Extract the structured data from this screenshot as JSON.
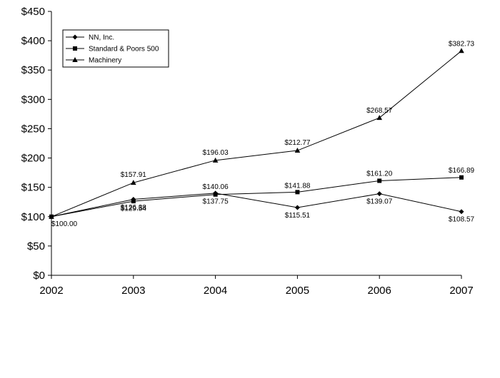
{
  "chart_data": {
    "type": "line",
    "title": "",
    "xlabel": "",
    "ylabel": "",
    "categories": [
      "2002",
      "2003",
      "2004",
      "2005",
      "2006",
      "2007"
    ],
    "y_tick_labels": [
      "$0",
      "$50",
      "$100",
      "$150",
      "$200",
      "$250",
      "$300",
      "$350",
      "$400",
      "$450"
    ],
    "y_tick_values": [
      0,
      50,
      100,
      150,
      200,
      250,
      300,
      350,
      400,
      450
    ],
    "ylim": [
      0,
      450
    ],
    "grid": false,
    "legend_position": "top-left",
    "series": [
      {
        "name": "NN, Inc.",
        "marker": "diamond",
        "values": [
          100.0,
          129.54,
          140.06,
          115.51,
          139.07,
          108.57
        ],
        "labels": [
          "$100.00",
          "$129.54",
          "$140.06",
          "$115.51",
          "$139.07",
          "$108.57"
        ]
      },
      {
        "name": "Standard & Poors 500",
        "marker": "square",
        "values": [
          100.0,
          126.38,
          137.75,
          141.88,
          161.2,
          166.89
        ],
        "labels": [
          "",
          "$126.38",
          "$137.75",
          "$141.88",
          "$161.20",
          "$166.89"
        ]
      },
      {
        "name": "Machinery",
        "marker": "triangle",
        "values": [
          100.0,
          157.91,
          196.03,
          212.77,
          268.57,
          382.73
        ],
        "labels": [
          "",
          "$157.91",
          "$196.03",
          "$212.77",
          "$268.57",
          "$382.73"
        ]
      }
    ],
    "colors": {
      "line": "#000000",
      "axis": "#000000",
      "background": "#ffffff"
    }
  }
}
